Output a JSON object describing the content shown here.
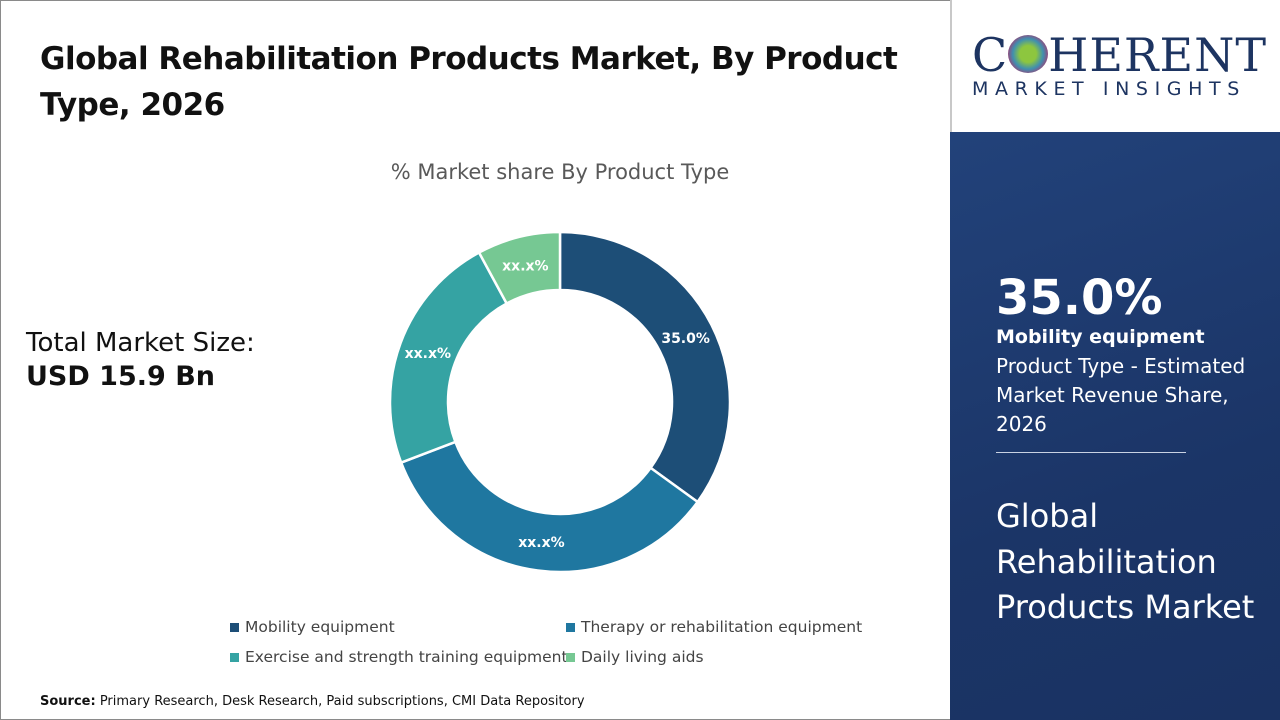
{
  "header": {
    "title": "Global Rehabilitation Products Market, By Product Type, 2026"
  },
  "total": {
    "label": "Total Market Size:",
    "value": "USD 15.9 Bn"
  },
  "logo": {
    "name": "COHERENT",
    "tagline": "MARKET INSIGHTS"
  },
  "highlight": {
    "value": "35.0%",
    "segment": "Mobility equipment",
    "description": "Product Type - Estimated Market Revenue Share, 2026",
    "market": "Global Rehabilitation Products Market"
  },
  "source": {
    "label": "Source:",
    "text": " Primary Research, Desk Research, Paid subscriptions, CMI Data Repository"
  },
  "chart_data": {
    "type": "pie",
    "donut": true,
    "title": "% Market share By Product Type",
    "categories": [
      "Mobility equipment",
      "Therapy or rehabilitation equipment",
      "Exercise and strength training equipment",
      "Daily living aids"
    ],
    "values": [
      35.0,
      34.2,
      22.9,
      7.9
    ],
    "data_labels": [
      "35.0%",
      "xx.x%",
      "xx.x%",
      "xx.x%"
    ],
    "colors": [
      "#1d4e77",
      "#1f77a0",
      "#35a3a3",
      "#76c893"
    ],
    "legend_position": "bottom"
  }
}
